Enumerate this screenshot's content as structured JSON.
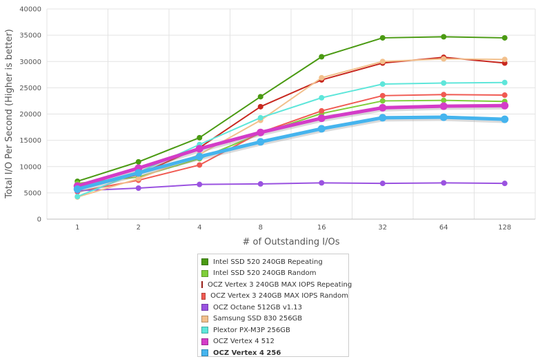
{
  "chart_data": {
    "type": "line",
    "title": "",
    "xlabel": "# of Outstanding I/Os",
    "ylabel": "Total I/O Per Second (Higher is better)",
    "categories": [
      "1",
      "2",
      "4",
      "8",
      "16",
      "32",
      "64",
      "128"
    ],
    "ylim": [
      0,
      40000
    ],
    "yticks": [
      "0",
      "5000",
      "10000",
      "15000",
      "20000",
      "25000",
      "30000",
      "35000",
      "40000"
    ],
    "grid": true,
    "legend_position": "bottom",
    "series": [
      {
        "name": "Intel SSD 520 240GB Repeating",
        "color": "#4a9a12",
        "values": [
          7200,
          10900,
          15500,
          23300,
          30900,
          34500,
          34700,
          34500
        ]
      },
      {
        "name": "Intel SSD 520 240GB Random",
        "color": "#7fce3a",
        "values": [
          6800,
          8000,
          11500,
          16300,
          20100,
          22500,
          22600,
          22400
        ]
      },
      {
        "name": "OCZ Vertex 3 240GB MAX IOPS Repeating",
        "color": "#c8281f",
        "values": [
          5600,
          8500,
          13600,
          21400,
          26500,
          29700,
          30800,
          29700
        ]
      },
      {
        "name": "OCZ Vertex 3 240GB MAX IOPS Random",
        "color": "#f05a52",
        "values": [
          5200,
          7400,
          10300,
          16500,
          20600,
          23500,
          23700,
          23600
        ]
      },
      {
        "name": "OCZ Octane 512GB v1.13",
        "color": "#9a52e0",
        "values": [
          5400,
          5900,
          6600,
          6700,
          6900,
          6800,
          6900,
          6800
        ]
      },
      {
        "name": "Samsung SSD 830 256GB",
        "color": "#f2c08c",
        "values": [
          4200,
          7700,
          12300,
          18800,
          26900,
          30000,
          30500,
          30400
        ]
      },
      {
        "name": "Plextor PX-M3P 256GB",
        "color": "#5ee6da",
        "values": [
          4300,
          8900,
          14200,
          19300,
          23100,
          25700,
          25900,
          26000
        ]
      },
      {
        "name": "OCZ Vertex 4 512",
        "color": "#d43cc8",
        "values": [
          6300,
          9700,
          13400,
          16500,
          19200,
          21200,
          21500,
          21600
        ]
      },
      {
        "name": "OCZ Vertex 4 256",
        "color": "#45b4ee",
        "values": [
          5700,
          8800,
          11900,
          14700,
          17200,
          19300,
          19400,
          19000
        ]
      }
    ]
  }
}
